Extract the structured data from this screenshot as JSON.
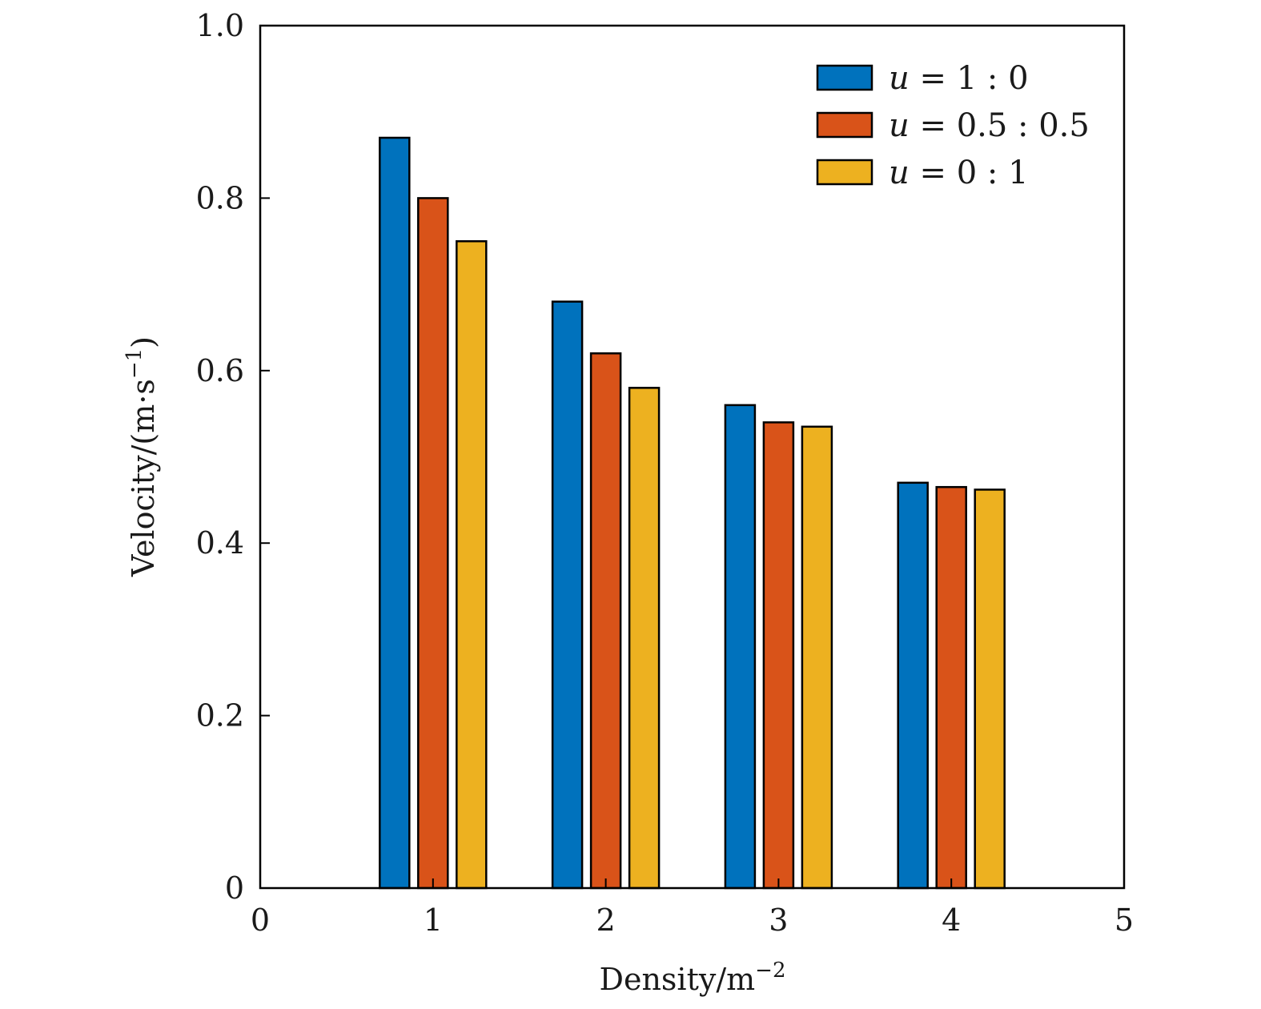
{
  "chart_data": {
    "type": "bar",
    "title": "",
    "xlabel": "Density/m",
    "xlabel_sup": "−2",
    "ylabel": "Velocity/(m·s",
    "ylabel_sup": "−1",
    "ylabel_close": ")",
    "categories": [
      1,
      2,
      3,
      4
    ],
    "xlim": [
      0,
      5
    ],
    "ylim": [
      0,
      1.0
    ],
    "xticks": [
      "0",
      "1",
      "2",
      "3",
      "4",
      "5"
    ],
    "yticks": [
      "0",
      "0.2",
      "0.4",
      "0.6",
      "0.8",
      "1.0"
    ],
    "ytick_values": [
      0,
      0.2,
      0.4,
      0.6,
      0.8,
      1.0
    ],
    "xtick_values": [
      0,
      1,
      2,
      3,
      4,
      5
    ],
    "grid": false,
    "legend_position": "top-right",
    "series": [
      {
        "name": "u = 1 : 0",
        "label_var": "u",
        "label_rest": " = 1 : 0",
        "color": "#0072BD",
        "values": [
          0.87,
          0.68,
          0.56,
          0.47
        ]
      },
      {
        "name": "u = 0.5 : 0.5",
        "label_var": "u",
        "label_rest": " = 0.5 : 0.5",
        "color": "#D95319",
        "values": [
          0.8,
          0.62,
          0.54,
          0.465
        ]
      },
      {
        "name": "u = 0 : 1",
        "label_var": "u",
        "label_rest": " = 0 : 1",
        "color": "#EDB120",
        "values": [
          0.75,
          0.58,
          0.535,
          0.462
        ]
      }
    ]
  }
}
